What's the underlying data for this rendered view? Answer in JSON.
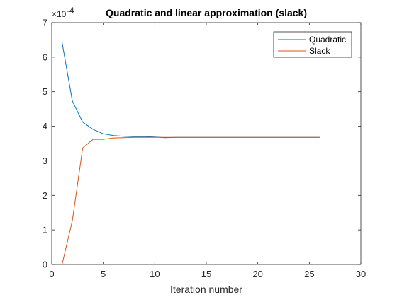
{
  "chart_data": {
    "type": "line",
    "title": "Quadratic and linear approximation (slack)",
    "xlabel": "Iteration number",
    "ylabel": "",
    "xlim": [
      0,
      30
    ],
    "ylim": [
      0,
      7
    ],
    "y_exponent_label": "×10",
    "y_exponent_power": "-4",
    "x_ticks": [
      0,
      5,
      10,
      15,
      20,
      25,
      30
    ],
    "y_ticks": [
      0,
      1,
      2,
      3,
      4,
      5,
      6,
      7
    ],
    "grid": false,
    "legend": "top-right",
    "series": [
      {
        "name": "Quadratic",
        "color": "#0072BD",
        "x": [
          1,
          2,
          3,
          4,
          5,
          6,
          7,
          8,
          9,
          10,
          11,
          12,
          13,
          14,
          15,
          16,
          17,
          18,
          19,
          20,
          21,
          22,
          23,
          24,
          25,
          26
        ],
        "y": [
          6.43,
          4.73,
          4.12,
          3.91,
          3.78,
          3.73,
          3.71,
          3.7,
          3.7,
          3.69,
          3.67,
          3.68,
          3.68,
          3.68,
          3.68,
          3.68,
          3.68,
          3.68,
          3.68,
          3.68,
          3.68,
          3.68,
          3.68,
          3.68,
          3.68,
          3.68
        ]
      },
      {
        "name": "Slack",
        "color": "#D95319",
        "x": [
          1,
          2,
          3,
          4,
          5,
          6,
          7,
          8,
          9,
          10,
          11,
          12,
          13,
          14,
          15,
          16,
          17,
          18,
          19,
          20,
          21,
          22,
          23,
          24,
          25,
          26
        ],
        "y": [
          0.0,
          1.27,
          3.37,
          3.62,
          3.62,
          3.66,
          3.67,
          3.68,
          3.68,
          3.68,
          3.68,
          3.68,
          3.68,
          3.68,
          3.68,
          3.68,
          3.68,
          3.68,
          3.68,
          3.68,
          3.68,
          3.68,
          3.68,
          3.68,
          3.68,
          3.68
        ]
      }
    ]
  }
}
